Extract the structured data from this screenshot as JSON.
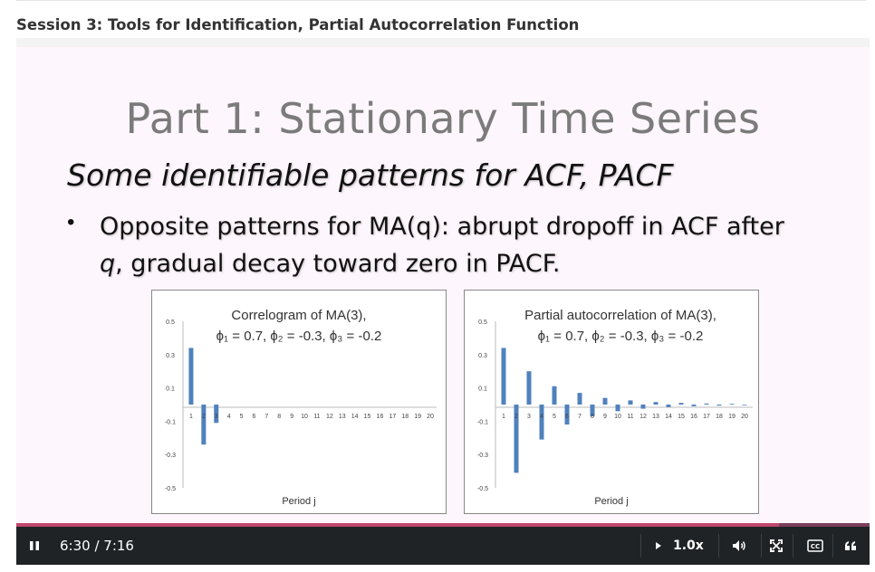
{
  "session": {
    "title": "Session 3: Tools for Identification, Partial Autocorrelation Function"
  },
  "slide": {
    "title": "Part 1: Stationary Time Series",
    "subtitle": "Some identifiable patterns for ACF, PACF",
    "bullet_line1": "Opposite patterns for MA(q): abrupt dropoff in ACF after",
    "bullet_line2_q": "q",
    "bullet_line2_rest": ", gradual decay toward zero in PACF."
  },
  "chart_data": [
    {
      "type": "bar",
      "title": "Correlogram of MA(3),",
      "subtitle": "ϕ₁ = 0.7, ϕ₂ = -0.3, ϕ₃ = -0.2",
      "xlabel": "Period j",
      "ylabel": "",
      "ylim": [
        -0.5,
        0.5
      ],
      "yticks": [
        0.5,
        0.3,
        0.1,
        -0.1,
        -0.3,
        -0.5
      ],
      "categories": [
        "1",
        "2",
        "3",
        "4",
        "5",
        "6",
        "7",
        "8",
        "9",
        "10",
        "11",
        "12",
        "13",
        "14",
        "15",
        "16",
        "17",
        "18",
        "19",
        "20"
      ],
      "values": [
        0.34,
        -0.24,
        -0.11,
        0,
        0,
        0,
        0,
        0,
        0,
        0,
        0,
        0,
        0,
        0,
        0,
        0,
        0,
        0,
        0,
        0
      ],
      "bar_color": "#4f81bd"
    },
    {
      "type": "bar",
      "title": "Partial autocorrelation of MA(3),",
      "subtitle": "ϕ₁ = 0.7, ϕ₂ = -0.3, ϕ₃ = -0.2",
      "xlabel": "Period j",
      "ylabel": "",
      "ylim": [
        -0.5,
        0.5
      ],
      "yticks": [
        0.5,
        0.3,
        0.1,
        -0.1,
        -0.3,
        -0.5
      ],
      "categories": [
        "1",
        "2",
        "3",
        "4",
        "5",
        "6",
        "7",
        "8",
        "9",
        "10",
        "11",
        "12",
        "13",
        "14",
        "15",
        "16",
        "17",
        "18",
        "19",
        "20"
      ],
      "values": [
        0.34,
        -0.41,
        0.2,
        -0.21,
        0.11,
        -0.12,
        0.07,
        -0.07,
        0.04,
        -0.04,
        0.025,
        -0.025,
        0.015,
        -0.015,
        0.01,
        -0.01,
        0.006,
        -0.006,
        0.004,
        -0.004
      ],
      "bar_color": "#4f81bd"
    }
  ],
  "player": {
    "time": "6:30 / 7:16",
    "progress_fraction": 0.894,
    "speed": "1.0x",
    "play_state": "playing"
  },
  "colors": {
    "progress": "#c0466e",
    "controls_bg": "#1f2326"
  },
  "icons": [
    "pause-icon",
    "speed-arrow-icon",
    "volume-icon",
    "fullscreen-icon",
    "closed-captions-icon",
    "transcript-quote-icon"
  ]
}
